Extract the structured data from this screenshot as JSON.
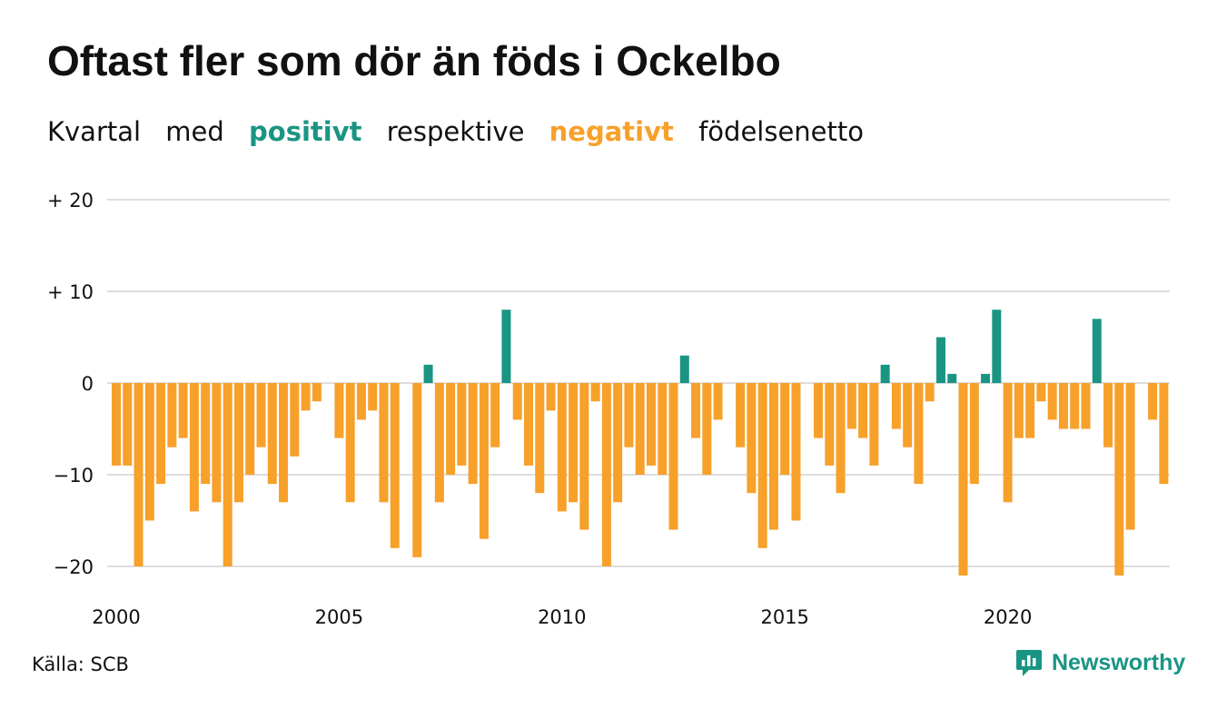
{
  "title": "Oftast fler som dör än föds i Ockelbo",
  "subtitle": {
    "word1": "Kvartal",
    "word2": "med",
    "positive": "positivt",
    "word3": "respektive",
    "negative": "negativt",
    "word4": "födelsenetto"
  },
  "source": "Källa: SCB",
  "brand": "Newsworthy",
  "colors": {
    "positive": "#1a9583",
    "negative": "#f7a02a",
    "grid": "#dddddd",
    "text": "#111111"
  },
  "chart_data": {
    "type": "bar",
    "ylim": [
      -22,
      20
    ],
    "yticks": [
      {
        "value": 20,
        "label": "+ 20"
      },
      {
        "value": 10,
        "label": "+ 10"
      },
      {
        "value": 0,
        "label": "0"
      },
      {
        "value": -10,
        "label": "−10"
      },
      {
        "value": -20,
        "label": "−20"
      }
    ],
    "xticks": [
      "2000",
      "2005",
      "2010",
      "2015",
      "2020"
    ],
    "first_year": 2000,
    "values": [
      -9,
      -9,
      -20,
      -15,
      -11,
      -7,
      -6,
      -14,
      -11,
      -13,
      -20,
      -13,
      -10,
      -7,
      -11,
      -13,
      -8,
      -3,
      -2,
      0,
      -6,
      -13,
      -4,
      -3,
      -13,
      -18,
      0,
      -19,
      2,
      -13,
      -10,
      -9,
      -11,
      -17,
      -7,
      8,
      -4,
      -9,
      -12,
      -3,
      -14,
      -13,
      -16,
      -2,
      -20,
      -13,
      -7,
      -10,
      -9,
      -10,
      -16,
      3,
      -6,
      -10,
      -4,
      0,
      -7,
      -12,
      -18,
      -16,
      -10,
      -15,
      0,
      -6,
      -9,
      -12,
      -5,
      -6,
      -9,
      2,
      -5,
      -7,
      -11,
      -2,
      5,
      1,
      -21,
      -11,
      1,
      8,
      -13,
      -6,
      -6,
      -2,
      -4,
      -5,
      -5,
      -5,
      7,
      -7,
      -21,
      -16,
      0,
      -4,
      -11
    ]
  }
}
